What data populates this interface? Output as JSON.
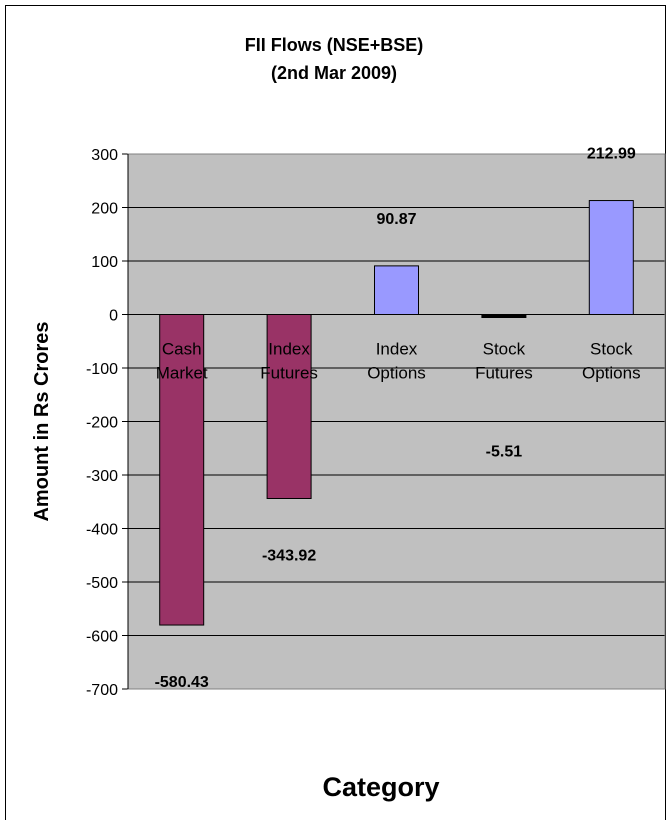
{
  "chart_data": {
    "type": "bar",
    "title": [
      "FII Flows (NSE+BSE)",
      "(2nd Mar 2009)"
    ],
    "xlabel": "Category",
    "ylabel": "Amount in Rs Crores",
    "ylim": [
      -700,
      300
    ],
    "ytick_step": 100,
    "grid": true,
    "legend": "none",
    "categories": [
      [
        "Cash",
        "Market"
      ],
      [
        "Index",
        "Futures"
      ],
      [
        "Index",
        "Options"
      ],
      [
        "Stock",
        "Futures"
      ],
      [
        "Stock",
        "Options"
      ]
    ],
    "values": [
      -580.43,
      -343.92,
      90.87,
      -5.51,
      212.99
    ],
    "data_labels": [
      "-580.43",
      "-343.92",
      "90.87",
      "-5.51",
      "212.99"
    ],
    "colors": {
      "plot_background": "#c0c0c0",
      "negative_bar": "#993366",
      "positive_bar": "#9999ff",
      "small_bar": "#000000",
      "gridline": "#000000"
    }
  }
}
